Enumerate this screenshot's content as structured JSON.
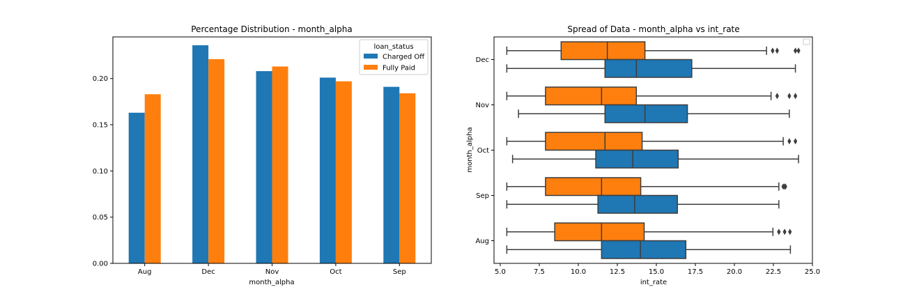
{
  "chart_data": [
    {
      "type": "bar",
      "title": "Percentage Distribution - month_alpha",
      "xlabel": "month_alpha",
      "ylabel": "",
      "categories": [
        "Aug",
        "Dec",
        "Nov",
        "Oct",
        "Sep"
      ],
      "ylim": [
        0,
        0.245
      ],
      "yticks": [
        0.0,
        0.05,
        0.1,
        0.15,
        0.2
      ],
      "ytick_labels": [
        "0.00",
        "0.05",
        "0.10",
        "0.15",
        "0.20"
      ],
      "legend": {
        "title": "loan_status",
        "placement": "top-right"
      },
      "series": [
        {
          "name": "Charged Off",
          "color": "#1f77b4",
          "values": [
            0.163,
            0.236,
            0.208,
            0.201,
            0.191
          ]
        },
        {
          "name": "Fully Paid",
          "color": "#ff7f0e",
          "values": [
            0.183,
            0.221,
            0.213,
            0.197,
            0.184
          ]
        }
      ]
    },
    {
      "type": "boxplot",
      "orientation": "horizontal",
      "title": "Spread of Data - month_alpha vs int_rate",
      "xlabel": "int_rate",
      "ylabel": "month_alpha",
      "categories": [
        "Dec",
        "Nov",
        "Oct",
        "Sep",
        "Aug"
      ],
      "xlim": [
        4.6,
        25.0
      ],
      "xticks": [
        5.0,
        7.5,
        10.0,
        12.5,
        15.0,
        17.5,
        20.0,
        22.5,
        25.0
      ],
      "xtick_labels": [
        "5.0",
        "7.5",
        "10.0",
        "12.5",
        "15.0",
        "17.5",
        "20.0",
        "22.5",
        "25.0"
      ],
      "legend": {
        "placement": "top-right",
        "empty": true
      },
      "series": [
        {
          "color": "#ff7f0e",
          "boxes": [
            {
              "category": "Dec",
              "whislo": 5.42,
              "q1": 8.9,
              "med": 11.86,
              "q3": 14.27,
              "whishi": 22.06,
              "fliers": [
                22.45,
                22.74,
                23.91,
                24.11
              ]
            },
            {
              "category": "Nov",
              "whislo": 5.42,
              "q1": 7.9,
              "med": 11.49,
              "q3": 13.72,
              "whishi": 22.35,
              "fliers": [
                22.74,
                23.52,
                23.91
              ]
            },
            {
              "category": "Oct",
              "whislo": 5.42,
              "q1": 7.9,
              "med": 11.71,
              "q3": 14.09,
              "whishi": 23.13,
              "fliers": [
                23.52,
                23.91
              ]
            },
            {
              "category": "Sep",
              "whislo": 5.42,
              "q1": 7.9,
              "med": 11.49,
              "q3": 14.0,
              "whishi": 22.85,
              "fliers": [
                23.13,
                23.22,
                23.27
              ]
            },
            {
              "category": "Aug",
              "whislo": 5.42,
              "q1": 8.49,
              "med": 11.49,
              "q3": 14.22,
              "whishi": 22.47,
              "fliers": [
                22.85,
                23.22,
                23.56
              ]
            }
          ]
        },
        {
          "color": "#1f77b4",
          "boxes": [
            {
              "category": "Dec",
              "whislo": 5.42,
              "q1": 11.71,
              "med": 13.72,
              "q3": 17.27,
              "whishi": 23.91,
              "fliers": []
            },
            {
              "category": "Nov",
              "whislo": 6.17,
              "q1": 11.71,
              "med": 14.27,
              "q3": 16.99,
              "whishi": 23.52,
              "fliers": []
            },
            {
              "category": "Oct",
              "whislo": 5.79,
              "q1": 11.12,
              "med": 13.49,
              "q3": 16.4,
              "whishi": 24.11,
              "fliers": []
            },
            {
              "category": "Sep",
              "whislo": 5.42,
              "q1": 11.26,
              "med": 13.61,
              "q3": 16.35,
              "whishi": 22.85,
              "fliers": []
            },
            {
              "category": "Aug",
              "whislo": 5.42,
              "q1": 11.49,
              "med": 13.98,
              "q3": 16.89,
              "whishi": 23.59,
              "fliers": []
            }
          ]
        }
      ]
    }
  ]
}
